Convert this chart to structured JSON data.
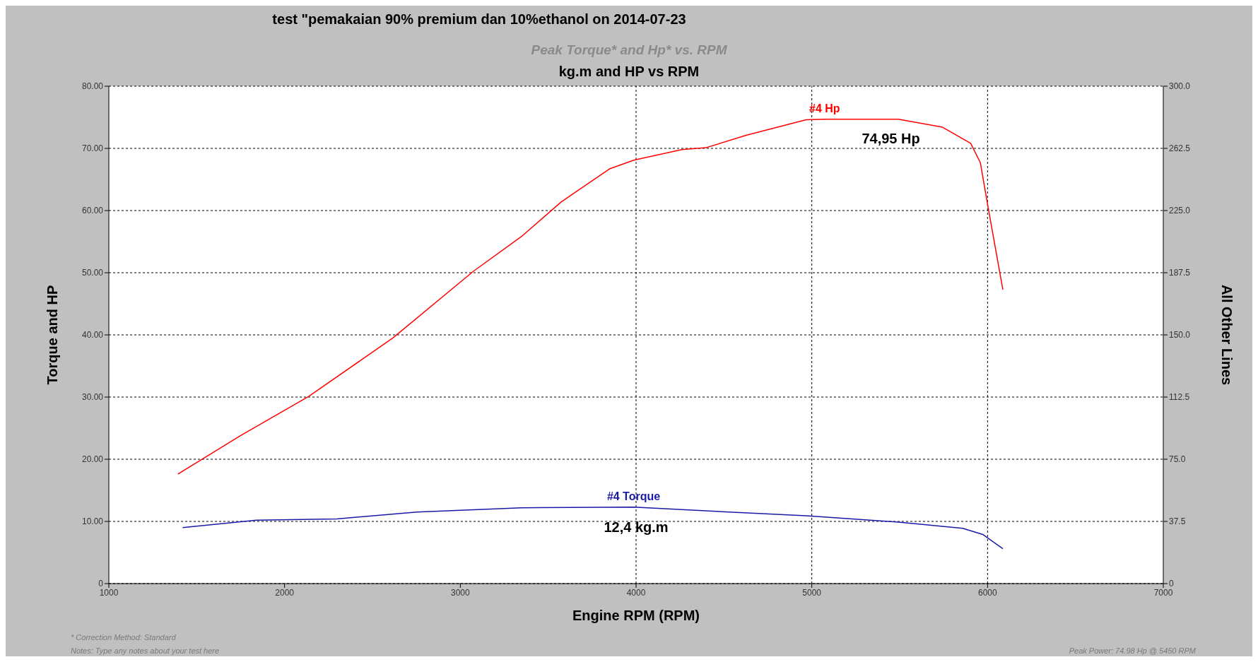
{
  "chart_data": {
    "type": "line",
    "title": "test \"pemakaian 90% premium dan 10%ethanol on 2014-07-23",
    "subtitle": "Peak Torque* and Hp* vs. RPM",
    "xlabel": "Engine RPM (RPM)",
    "ylabel": "Torque and HP",
    "y2label": "All Other Lines",
    "annotations": [
      "kg.m and HP vs RPM",
      "* Correction Method: Standard",
      "Notes: Type any notes about your test here",
      "Peak Power: 74.98 Hp @ 5450 RPM",
      {
        "text": "74,95 Hp",
        "x": 5450,
        "y": 74.95
      },
      {
        "text": "12,4 kg.m",
        "x": 4000,
        "y": 12.4
      }
    ],
    "series": [
      {
        "name": "#4 Hp",
        "color": "#ff0000",
        "x": [
          1393,
          1749,
          2137,
          2616,
          3073,
          3347,
          3575,
          3849,
          3986,
          4260,
          4397,
          4626,
          4968,
          5073,
          5493,
          5744,
          5904,
          5959,
          6005,
          6087
        ],
        "values": [
          17.6,
          23.8,
          30.1,
          39.5,
          50.2,
          55.8,
          61.4,
          66.7,
          68.1,
          69.8,
          70.1,
          72.1,
          74.6,
          74.7,
          74.7,
          73.4,
          70.8,
          67.7,
          60.2,
          47.3
        ]
      },
      {
        "name": "#4 Torque",
        "color": "#1a1aa8",
        "x": [
          1420,
          1840,
          2297,
          2753,
          3347,
          3986,
          4397,
          4968,
          5493,
          5858,
          5973,
          6087
        ],
        "values": [
          9.0,
          10.2,
          10.4,
          11.5,
          12.2,
          12.3,
          11.7,
          10.9,
          9.9,
          8.9,
          7.9,
          5.6
        ]
      }
    ],
    "xlim": [
      1000,
      7000
    ],
    "xticks": [
      1000,
      2000,
      3000,
      4000,
      5000,
      6000,
      7000
    ],
    "ylim": [
      0,
      80
    ],
    "yticks": [
      0,
      {
        "value": 10,
        "label": "10.00"
      },
      {
        "value": 20,
        "label": "20.00"
      },
      {
        "value": 30,
        "label": "30.00"
      },
      {
        "value": 40,
        "label": "40.00"
      },
      {
        "value": 50,
        "label": "50.00"
      },
      {
        "value": 60,
        "label": "60.00"
      },
      {
        "value": 70,
        "label": "70.00"
      },
      {
        "value": 80,
        "label": "80.00"
      }
    ],
    "y2lim": [
      0,
      300
    ],
    "y2ticks": [
      0,
      {
        "value": 37.5,
        "label": "37.5"
      },
      {
        "value": 75,
        "label": "75.0"
      },
      {
        "value": 112.5,
        "label": "112.5"
      },
      {
        "value": 150,
        "label": "150.0"
      },
      {
        "value": 187.5,
        "label": "187.5"
      },
      {
        "value": 225,
        "label": "225.0"
      },
      {
        "value": 262.5,
        "label": "262.5"
      },
      {
        "value": 300,
        "label": "300.0"
      }
    ],
    "grid": "y",
    "legend": false,
    "marker": "none",
    "line_style": "solid",
    "ref_lines": [
      {
        "axis": "x",
        "value": 4000,
        "line_style": "dotted"
      },
      {
        "axis": "x",
        "value": 5000,
        "line_style": "dotted"
      },
      {
        "axis": "x",
        "value": 6000,
        "line_style": "dotted"
      }
    ]
  }
}
